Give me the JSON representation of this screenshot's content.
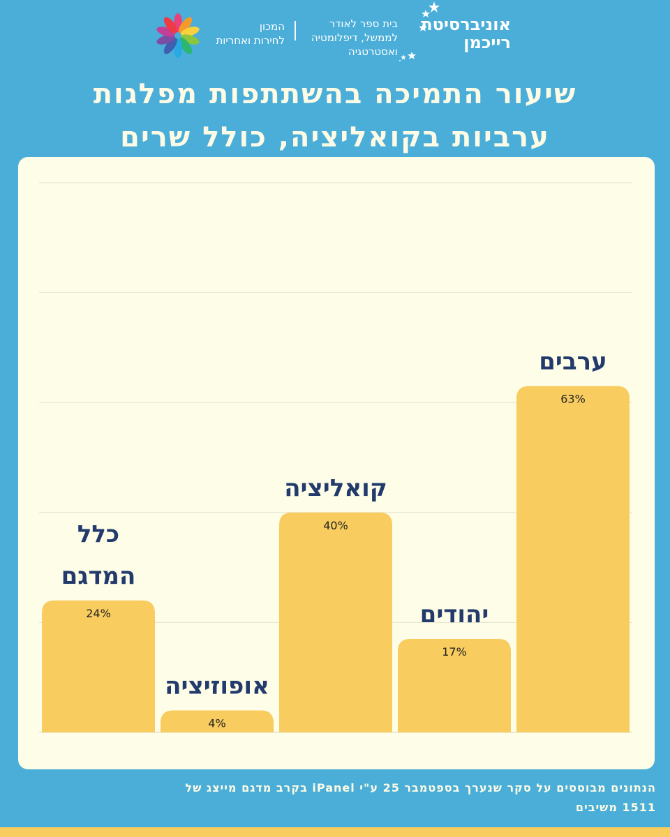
{
  "header": {
    "university_line1": "אוניברסיטת",
    "university_line2": "רייכמן",
    "school_line1": "בית ספר לאודר",
    "school_line2": "לממשל, דיפלומטיה",
    "school_line3": "ואסטרטגיה",
    "institute_line1": "המכון",
    "institute_line2": "לחירות ואחריות"
  },
  "title": {
    "line1": "שיעור התמיכה בהשתתפות מפלגות",
    "line2": "ערביות בקואליציה, כולל שרים"
  },
  "footnote": {
    "line1": "הנתונים מבוססים על סקר שנערך בספטמבר 25 ע\"י iPanel בקרב מדגם מייצג של",
    "line2": "1511 משיבים"
  },
  "colors": {
    "background": "#4aaed8",
    "panel": "#fefde7",
    "bar": "#f8cc5e",
    "label": "#233a6c"
  },
  "chart_data": {
    "type": "bar",
    "categories": [
      "כלל המדגם",
      "אופוזיציה",
      "קואליציה",
      "יהודים",
      "ערבים"
    ],
    "category_lines": [
      [
        "כלל",
        "המדגם"
      ],
      [
        "אופוזיציה"
      ],
      [
        "קואליציה"
      ],
      [
        "יהודים"
      ],
      [
        "ערבים"
      ]
    ],
    "values": [
      24,
      4,
      40,
      17,
      63
    ],
    "value_labels": [
      "24%",
      "4%",
      "40%",
      "17%",
      "63%"
    ],
    "ylim": [
      0,
      100
    ],
    "grid": true
  }
}
